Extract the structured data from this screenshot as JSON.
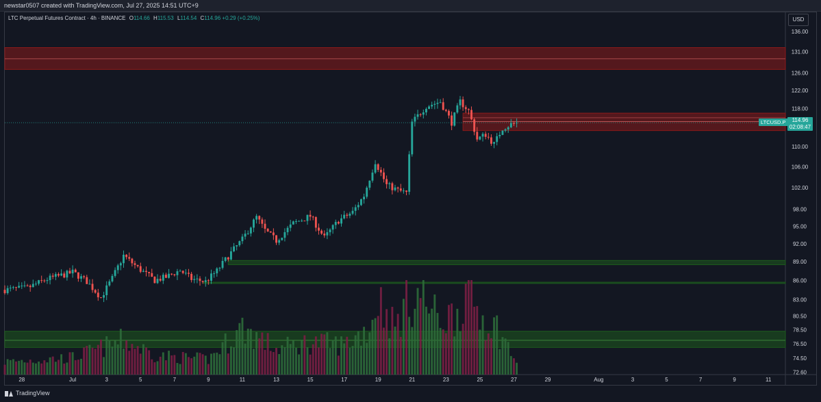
{
  "header": {
    "credit": "newstar0507 created with TradingView.com, Jul 27, 2025 14:51 UTC+9"
  },
  "legend": {
    "title": "LTC Perpetual Futures Contract · 4h · BINANCE",
    "open_label": "O",
    "open": "114.66",
    "high_label": "H",
    "high": "115.53",
    "low_label": "L",
    "low": "114.54",
    "close_label": "C",
    "close": "114.96",
    "change": "+0.29 (+0.25%)"
  },
  "currency_button": "USD",
  "price_tag": {
    "symbol": "LTCUSD.P",
    "price": "114.96",
    "countdown": "02:08:47"
  },
  "footer": {
    "brand": "TradingView"
  },
  "colors": {
    "up": "#26a69a",
    "down": "#ef5350",
    "vol_up": "#2e6b3a",
    "vol_down": "#7a1f44",
    "resistance_zone": "#8b1a1a",
    "support_zone": "#1d5a1d"
  },
  "chart_data": {
    "type": "candlestick",
    "title": "LTC Perpetual Futures Contract · 4h · BINANCE",
    "y_axis": {
      "scale": "log",
      "ticks": [
        "136.00",
        "131.00",
        "126.00",
        "122.00",
        "118.00",
        "114.96",
        "110.00",
        "106.00",
        "102.00",
        "98.00",
        "95.00",
        "92.00",
        "89.00",
        "86.00",
        "83.00",
        "80.50",
        "78.50",
        "76.50",
        "74.50",
        "72.60"
      ],
      "range": [
        72.2,
        137
      ]
    },
    "x_axis": {
      "ticks": [
        "28",
        "Jul",
        "3",
        "5",
        "7",
        "9",
        "11",
        "13",
        "15",
        "17",
        "19",
        "21",
        "23",
        "25",
        "27",
        "29",
        "Aug",
        "3",
        "5",
        "7",
        "9",
        "11"
      ],
      "range": [
        "2025-06-27",
        "2025-08-12"
      ]
    },
    "zones": [
      {
        "kind": "resistance",
        "from": 126.8,
        "to": 132.0
      },
      {
        "kind": "resistance",
        "from": 113.3,
        "to": 117.0
      },
      {
        "kind": "support",
        "from": 88.5,
        "to": 89.2
      },
      {
        "kind": "support",
        "from": 85.5,
        "to": 85.7
      },
      {
        "kind": "support",
        "from": 76.0,
        "to": 78.3
      }
    ],
    "close_line": 114.96,
    "waypoints": [
      [
        "2025-06-27T00:00",
        84.5
      ],
      [
        "2025-06-28T08:00",
        84.8
      ],
      [
        "2025-06-29T12:00",
        86.2
      ],
      [
        "2025-06-30T16:00",
        87.0
      ],
      [
        "2025-07-01T00:00",
        87.3
      ],
      [
        "2025-07-01T20:00",
        85.8
      ],
      [
        "2025-07-02T16:00",
        83.3
      ],
      [
        "2025-07-03T08:00",
        86.3
      ],
      [
        "2025-07-04T00:00",
        90.0
      ],
      [
        "2025-07-04T20:00",
        88.0
      ],
      [
        "2025-07-05T20:00",
        86.0
      ],
      [
        "2025-07-06T12:00",
        86.5
      ],
      [
        "2025-07-07T08:00",
        87.6
      ],
      [
        "2025-07-08T00:00",
        86.2
      ],
      [
        "2025-07-08T20:00",
        85.8
      ],
      [
        "2025-07-09T12:00",
        87.5
      ],
      [
        "2025-07-10T08:00",
        90.5
      ],
      [
        "2025-07-11T00:00",
        92.7
      ],
      [
        "2025-07-11T20:00",
        96.6
      ],
      [
        "2025-07-12T08:00",
        94.3
      ],
      [
        "2025-07-13T00:00",
        92.5
      ],
      [
        "2025-07-14T00:00",
        95.5
      ],
      [
        "2025-07-15T00:00",
        96.8
      ],
      [
        "2025-07-15T20:00",
        93.0
      ],
      [
        "2025-07-16T16:00",
        96.0
      ],
      [
        "2025-07-17T12:00",
        97.5
      ],
      [
        "2025-07-18T04:00",
        100.5
      ],
      [
        "2025-07-18T20:00",
        107.0
      ],
      [
        "2025-07-19T12:00",
        102.5
      ],
      [
        "2025-07-20T04:00",
        101.5
      ],
      [
        "2025-07-20T16:00",
        101.0
      ],
      [
        "2025-07-21T00:00",
        115.0
      ],
      [
        "2025-07-21T20:00",
        118.5
      ],
      [
        "2025-07-22T16:00",
        119.5
      ],
      [
        "2025-07-23T08:00",
        115.0
      ],
      [
        "2025-07-23T20:00",
        119.5
      ],
      [
        "2025-07-24T08:00",
        117.5
      ],
      [
        "2025-07-24T20:00",
        111.5
      ],
      [
        "2025-07-25T08:00",
        112.5
      ],
      [
        "2025-07-25T20:00",
        110.5
      ],
      [
        "2025-07-26T08:00",
        113.8
      ],
      [
        "2025-07-26T20:00",
        114.6
      ],
      [
        "2025-07-27T04:00",
        114.96
      ]
    ],
    "volume": {
      "waypoints": [
        [
          "2025-06-27T00:00",
          0.15
        ],
        [
          "2025-07-01T00:00",
          0.2
        ],
        [
          "2025-07-04T00:00",
          0.4
        ],
        [
          "2025-07-06T00:00",
          0.22
        ],
        [
          "2025-07-09T00:00",
          0.18
        ],
        [
          "2025-07-11T00:00",
          0.55
        ],
        [
          "2025-07-13T00:00",
          0.3
        ],
        [
          "2025-07-15T00:00",
          0.38
        ],
        [
          "2025-07-17T00:00",
          0.35
        ],
        [
          "2025-07-18T12:00",
          0.55
        ],
        [
          "2025-07-19T00:00",
          0.9
        ],
        [
          "2025-07-20T00:00",
          0.55
        ],
        [
          "2025-07-20T16:00",
          0.85
        ],
        [
          "2025-07-21T12:00",
          0.95
        ],
        [
          "2025-07-22T12:00",
          0.65
        ],
        [
          "2025-07-23T12:00",
          0.7
        ],
        [
          "2025-07-24T08:00",
          1.0
        ],
        [
          "2025-07-25T00:00",
          0.7
        ],
        [
          "2025-07-26T00:00",
          0.55
        ],
        [
          "2025-07-27T04:00",
          0.15
        ]
      ]
    }
  }
}
